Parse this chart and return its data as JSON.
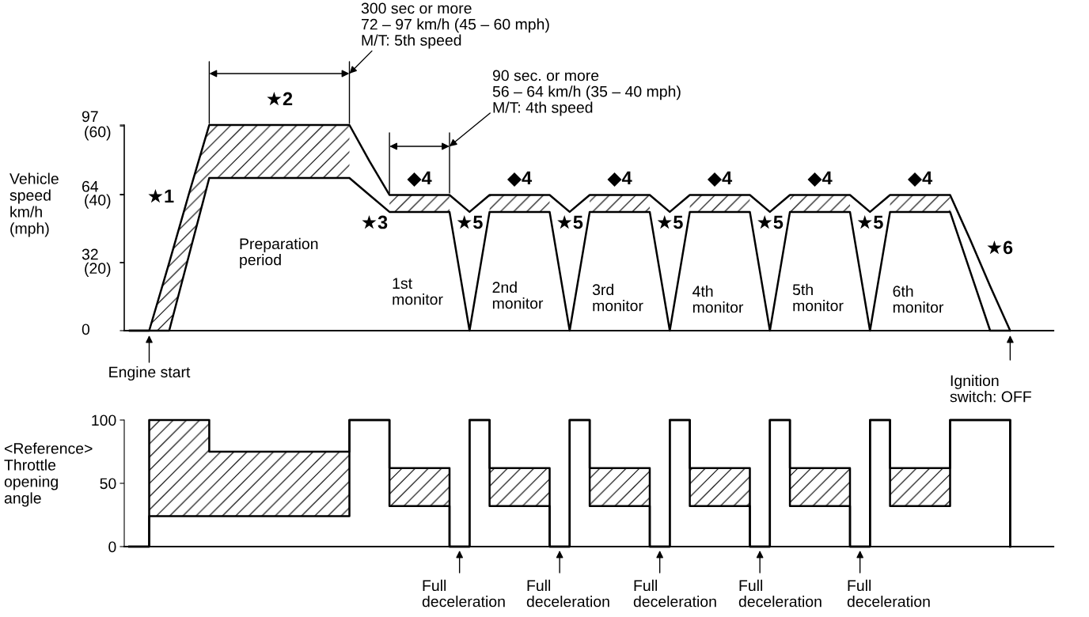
{
  "chart_data": [
    {
      "type": "line",
      "ylabel": "Vehicle\nspeed\nkm/h\n(mph)",
      "categories": [
        null,
        null,
        null,
        null,
        null,
        null,
        null,
        null,
        null,
        null,
        null,
        null,
        null,
        null,
        null,
        null,
        null,
        null,
        null,
        null,
        null,
        null,
        null,
        null,
        null,
        null,
        null,
        null,
        null,
        null,
        null,
        null,
        null,
        null,
        null,
        null,
        null,
        null,
        null,
        null,
        null,
        null,
        null,
        null,
        null
      ],
      "ylim": [
        0,
        97
      ],
      "yticks": [
        0,
        32,
        64,
        97
      ],
      "y2lim": [
        0,
        60.3
      ],
      "y2ticks": [
        {
          "value": 20,
          "label": "(20)"
        },
        {
          "value": 40,
          "label": "(40)"
        },
        {
          "value": 60,
          "label": "(60)"
        }
      ],
      "tick_labels": "y",
      "series": [
        {
          "color": "#000000",
          "values": [
            0,
            0,
            32,
            65,
            97,
            97,
            97,
            97,
            97,
            97,
            97,
            97,
            80,
            64,
            64,
            64,
            64,
            56,
            64,
            64,
            64,
            64,
            56,
            64,
            64,
            64,
            64,
            56,
            64,
            64,
            64,
            64,
            56,
            64,
            64,
            64,
            64,
            56,
            64,
            64,
            64,
            64,
            43,
            21,
            0
          ]
        },
        {
          "color": "#000000",
          "values": [
            0,
            0,
            0,
            36,
            72,
            72,
            72,
            72,
            72,
            72,
            72,
            72,
            64,
            56,
            56,
            56,
            56,
            0,
            56,
            56,
            56,
            56,
            0,
            56,
            56,
            56,
            56,
            0,
            56,
            56,
            56,
            56,
            0,
            56,
            56,
            56,
            56,
            0,
            56,
            56,
            56,
            56,
            28,
            0,
            0
          ],
          "lower": [
            null,
            0,
            0,
            36,
            72,
            72,
            72,
            72,
            72,
            72,
            72,
            72,
            null,
            56,
            56,
            56,
            56,
            null,
            56,
            56,
            56,
            56,
            null,
            56,
            56,
            56,
            56,
            null,
            56,
            56,
            56,
            56,
            null,
            56,
            56,
            56,
            56,
            null,
            56,
            56,
            56,
            56,
            null,
            null,
            null
          ],
          "upper": [
            null,
            0,
            32,
            65,
            97,
            97,
            97,
            97,
            97,
            97,
            97,
            97,
            null,
            64,
            64,
            64,
            64,
            null,
            64,
            64,
            64,
            64,
            null,
            64,
            64,
            64,
            64,
            null,
            64,
            64,
            64,
            64,
            null,
            64,
            64,
            64,
            64,
            null,
            64,
            64,
            64,
            64,
            null,
            null,
            null
          ]
        }
      ],
      "annotations": [
        "300 sec or more\n72 – 97 km/h (45 – 60 mph)\nM/T: 5th speed",
        "90 sec. or more\n56 – 64 km/h (35 – 40 mph)\nM/T: 4th speed",
        "★2",
        "★1",
        "Preparation\nperiod",
        "★3",
        "◆4",
        "◆4",
        "◆4",
        "◆4",
        "◆4",
        "◆4",
        "★5",
        "★5",
        "★5",
        "★5",
        "★5",
        "1st\nmonitor",
        "2nd\nmonitor",
        "3rd\nmonitor",
        "4th\nmonitor",
        "5th\nmonitor",
        "6th\nmonitor",
        "★6",
        "Engine start",
        "Ignition\nswitch: OFF"
      ]
    },
    {
      "type": "step",
      "ylabel": "<Reference>\nThrottle\nopening\nangle",
      "categories": [
        null,
        null,
        null,
        null,
        null,
        null,
        null,
        null,
        null,
        null,
        null,
        null,
        null,
        null,
        null,
        null,
        null,
        null,
        null,
        null,
        null,
        null,
        null,
        null,
        null,
        null,
        null,
        null,
        null,
        null,
        null,
        null,
        null,
        null,
        null,
        null,
        null,
        null,
        null,
        null,
        null,
        null,
        null,
        null,
        null
      ],
      "ylim": [
        0,
        100
      ],
      "yticks": [
        0,
        50,
        100
      ],
      "tick_labels": "y",
      "series": [
        {
          "color": "#000000",
          "values": [
            0,
            100,
            100,
            100,
            75,
            75,
            75,
            75,
            75,
            75,
            75,
            100,
            100,
            62,
            62,
            62,
            0,
            100,
            62,
            62,
            62,
            0,
            100,
            62,
            62,
            62,
            0,
            100,
            62,
            62,
            62,
            0,
            100,
            62,
            62,
            62,
            0,
            100,
            62,
            62,
            62,
            100,
            100,
            100,
            0
          ]
        },
        {
          "color": "#000000",
          "values": [
            0,
            24,
            24,
            24,
            24,
            24,
            24,
            24,
            24,
            24,
            24,
            100,
            100,
            32,
            32,
            32,
            0,
            100,
            32,
            32,
            32,
            0,
            100,
            32,
            32,
            32,
            0,
            100,
            32,
            32,
            32,
            0,
            100,
            32,
            32,
            32,
            0,
            100,
            32,
            32,
            32,
            100,
            100,
            100,
            0
          ],
          "lower": [
            null,
            24,
            24,
            24,
            24,
            24,
            24,
            24,
            24,
            24,
            24,
            24,
            null,
            32,
            32,
            32,
            32,
            null,
            32,
            32,
            32,
            32,
            null,
            32,
            32,
            32,
            32,
            null,
            32,
            32,
            32,
            32,
            null,
            32,
            32,
            32,
            32,
            null,
            32,
            32,
            32,
            32,
            null,
            null,
            null
          ],
          "upper": [
            null,
            100,
            100,
            100,
            75,
            75,
            75,
            75,
            75,
            75,
            75,
            75,
            null,
            62,
            62,
            62,
            62,
            null,
            62,
            62,
            62,
            62,
            null,
            62,
            62,
            62,
            62,
            null,
            62,
            62,
            62,
            62,
            null,
            62,
            62,
            62,
            62,
            null,
            62,
            62,
            62,
            62,
            null,
            null,
            null
          ]
        }
      ],
      "annotations": [
        "Full\ndeceleration",
        "Full\ndeceleration",
        "Full\ndeceleration",
        "Full\ndeceleration",
        "Full\ndeceleration"
      ]
    }
  ]
}
